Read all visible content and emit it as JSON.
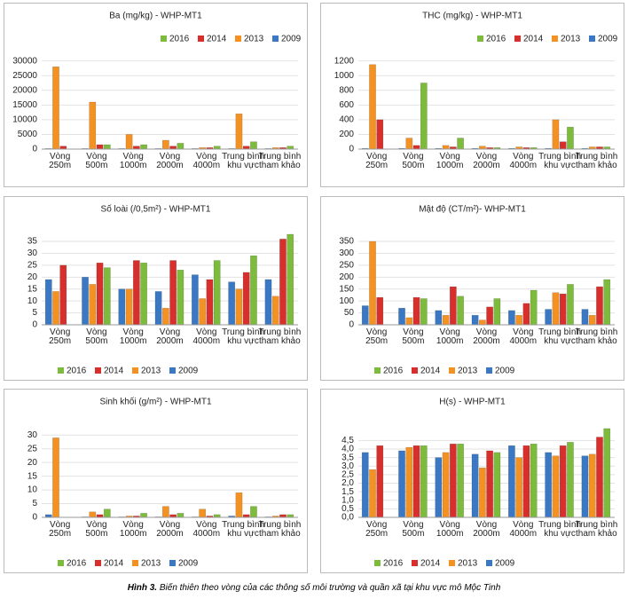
{
  "chart_data": [
    {
      "type": "bar",
      "title": "Ba (mg/kg) - WHP-MT1",
      "legend": "top-right",
      "categories": [
        "Vòng 250m",
        "Vòng 500m",
        "Vòng 1000m",
        "Vòng 2000m",
        "Vòng 4000m",
        "Trung bình khu vực",
        "Trung bình tham khảo"
      ],
      "series": [
        {
          "name": "2016",
          "color": "#7dbb3c",
          "values": [
            0,
            1500,
            1500,
            2000,
            1000,
            2500,
            1000
          ]
        },
        {
          "name": "2014",
          "color": "#d7302c",
          "values": [
            1000,
            1500,
            1000,
            1000,
            500,
            1000,
            500
          ]
        },
        {
          "name": "2013",
          "color": "#f39223",
          "values": [
            28000,
            16000,
            5000,
            3000,
            500,
            12000,
            500
          ]
        },
        {
          "name": "2009",
          "color": "#3a78c3",
          "values": [
            200,
            200,
            200,
            200,
            200,
            200,
            200
          ]
        }
      ],
      "ylim": [
        0,
        32000
      ],
      "yticks": [
        0,
        5000,
        10000,
        15000,
        20000,
        25000,
        30000
      ]
    },
    {
      "type": "bar",
      "title": "THC (mg/kg) - WHP-MT1",
      "legend": "top-right",
      "categories": [
        "Vòng 250m",
        "Vòng 500m",
        "Vòng 1000m",
        "Vòng 2000m",
        "Vòng 4000m",
        "Trung bình khu vực",
        "Trung bình tham khảo"
      ],
      "series": [
        {
          "name": "2016",
          "color": "#7dbb3c",
          "values": [
            0,
            900,
            150,
            20,
            20,
            300,
            30
          ]
        },
        {
          "name": "2014",
          "color": "#d7302c",
          "values": [
            400,
            50,
            30,
            20,
            20,
            100,
            30
          ]
        },
        {
          "name": "2013",
          "color": "#f39223",
          "values": [
            1150,
            150,
            50,
            40,
            30,
            400,
            30
          ]
        },
        {
          "name": "2009",
          "color": "#3a78c3",
          "values": [
            10,
            10,
            10,
            10,
            10,
            10,
            10
          ]
        }
      ],
      "ylim": [
        0,
        1280
      ],
      "yticks": [
        0,
        200,
        400,
        600,
        800,
        1000,
        1200
      ]
    },
    {
      "type": "bar",
      "title": "Số loài (/0,5m²) - WHP-MT1",
      "legend": "bottom",
      "categories": [
        "Vòng 250m",
        "Vòng 500m",
        "Vòng 1000m",
        "Vòng 2000m",
        "Vòng 4000m",
        "Trung bình khu vực",
        "Trung bình tham khảo"
      ],
      "series": [
        {
          "name": "2016",
          "color": "#7dbb3c",
          "values": [
            0,
            24,
            26,
            23,
            27,
            29,
            38
          ]
        },
        {
          "name": "2014",
          "color": "#d7302c",
          "values": [
            25,
            26,
            27,
            27,
            19,
            22,
            36
          ]
        },
        {
          "name": "2013",
          "color": "#f39223",
          "values": [
            14,
            17,
            15,
            7,
            11,
            15,
            12
          ]
        },
        {
          "name": "2009",
          "color": "#3a78c3",
          "values": [
            19,
            20,
            15,
            14,
            21,
            18,
            19
          ]
        }
      ],
      "ylim": [
        0,
        38
      ],
      "yticks": [
        0,
        5,
        10,
        15,
        20,
        25,
        30,
        35
      ]
    },
    {
      "type": "bar",
      "title": "Mật độ (CT/m²)- WHP-MT1",
      "legend": "bottom",
      "categories": [
        "Vòng 250m",
        "Vòng 500m",
        "Vòng 1000m",
        "Vòng 2000m",
        "Vòng 4000m",
        "Trung bình khu vực",
        "Trung bình tham khảo"
      ],
      "series": [
        {
          "name": "2016",
          "color": "#7dbb3c",
          "values": [
            0,
            110,
            120,
            110,
            145,
            170,
            190
          ]
        },
        {
          "name": "2014",
          "color": "#d7302c",
          "values": [
            115,
            115,
            160,
            75,
            90,
            130,
            160
          ]
        },
        {
          "name": "2013",
          "color": "#f39223",
          "values": [
            350,
            30,
            40,
            20,
            40,
            135,
            40
          ]
        },
        {
          "name": "2009",
          "color": "#3a78c3",
          "values": [
            80,
            70,
            60,
            40,
            60,
            65,
            65
          ]
        }
      ],
      "ylim": [
        0,
        380
      ],
      "yticks": [
        0,
        50,
        100,
        150,
        200,
        250,
        300,
        350
      ]
    },
    {
      "type": "bar",
      "title": "Sinh khối (g/m²) - WHP-MT1",
      "legend": "bottom",
      "categories": [
        "Vòng 250m",
        "Vòng 500m",
        "Vòng 1000m",
        "Vòng 2000m",
        "Vòng 4000m",
        "Trung bình khu vực",
        "Trung bình tham khảo"
      ],
      "series": [
        {
          "name": "2016",
          "color": "#7dbb3c",
          "values": [
            0,
            3,
            1.5,
            1.5,
            1,
            4,
            1
          ]
        },
        {
          "name": "2014",
          "color": "#d7302c",
          "values": [
            0,
            1,
            0.5,
            1,
            0.5,
            1,
            1
          ]
        },
        {
          "name": "2013",
          "color": "#f39223",
          "values": [
            29,
            2,
            0.5,
            4,
            3,
            9,
            0.5
          ]
        },
        {
          "name": "2009",
          "color": "#3a78c3",
          "values": [
            1,
            0.2,
            0.2,
            0.2,
            0.2,
            0.5,
            0.2
          ]
        }
      ],
      "ylim": [
        0,
        33
      ],
      "yticks": [
        0,
        5,
        10,
        15,
        20,
        25,
        30
      ]
    },
    {
      "type": "bar",
      "title": "H(s) - WHP-MT1",
      "legend": "bottom",
      "categories": [
        "Vòng 250m",
        "Vòng 500m",
        "Vòng 1000m",
        "Vòng 2000m",
        "Vòng 4000m",
        "Trung bình khu vực",
        "Trung bình tham khảo"
      ],
      "series": [
        {
          "name": "2016",
          "color": "#7dbb3c",
          "values": [
            0,
            4.2,
            4.3,
            3.8,
            4.3,
            4.4,
            5.2
          ]
        },
        {
          "name": "2014",
          "color": "#d7302c",
          "values": [
            4.2,
            4.2,
            4.3,
            3.9,
            4.2,
            4.2,
            4.7
          ]
        },
        {
          "name": "2013",
          "color": "#f39223",
          "values": [
            2.8,
            4.1,
            3.8,
            2.9,
            3.5,
            3.6,
            3.7
          ]
        },
        {
          "name": "2009",
          "color": "#3a78c3",
          "values": [
            3.8,
            3.9,
            3.5,
            3.7,
            4.2,
            3.8,
            3.6
          ]
        }
      ],
      "ylim": [
        0,
        5.3
      ],
      "yticks": [
        {
          "value": 0,
          "label": "0,0"
        },
        {
          "value": 0.5,
          "label": "0,5"
        },
        {
          "value": 1,
          "label": "1,0"
        },
        {
          "value": 1.5,
          "label": "1,5"
        },
        {
          "value": 2,
          "label": "2,0"
        },
        {
          "value": 2.5,
          "label": "2,5"
        },
        {
          "value": 3,
          "label": "3,0"
        },
        {
          "value": 3.5,
          "label": "3,5"
        },
        {
          "value": 4,
          "label": "4,0"
        },
        {
          "value": 4.5,
          "label": "4,5"
        }
      ]
    }
  ],
  "caption": {
    "label": "Hình 3.",
    "text": "Biến thiên theo vòng của các thông số môi trường và quần xã tại khu vực mô Mộc Tinh"
  }
}
